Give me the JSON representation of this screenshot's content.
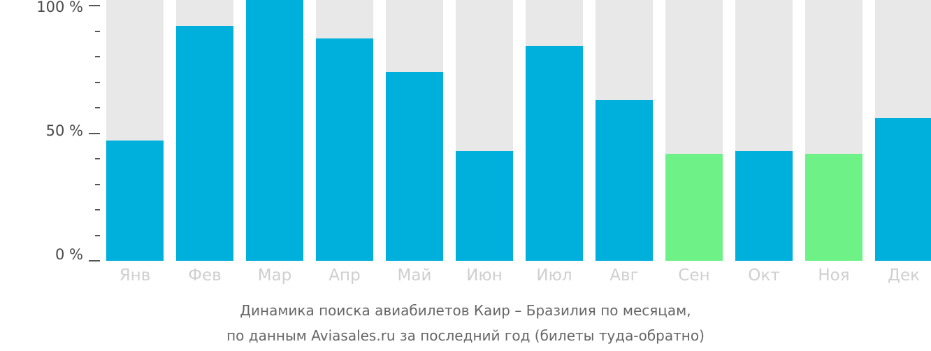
{
  "chart_data": {
    "type": "bar",
    "stacked_percent": true,
    "title": "Динамика поиска авиабилетов Каир – Бразилия по месяцам,",
    "subtitle": "по данным Aviasales.ru за последний год (билеты туда-обратно)",
    "xlabel": "",
    "ylabel": "",
    "ylim": [
      0,
      100
    ],
    "yticks": [
      "0 %",
      "50 %",
      "100 %"
    ],
    "categories": [
      "Янв",
      "Фев",
      "Мар",
      "Апр",
      "Май",
      "Июн",
      "Июл",
      "Авг",
      "Сен",
      "Окт",
      "Ноя",
      "Дек"
    ],
    "values": [
      47,
      92,
      100,
      87,
      74,
      43,
      84,
      63,
      42,
      43,
      42,
      56
    ],
    "highlight": [
      false,
      false,
      false,
      false,
      false,
      false,
      false,
      false,
      true,
      false,
      true,
      false
    ],
    "colors": {
      "bar": "#00b0dc",
      "highlight": "#6ef287",
      "background_bar": "#e8e8e8"
    },
    "grid": false,
    "legend": null
  },
  "labels": {
    "y_100": "100 %",
    "y_50": "50 %",
    "y_0": "0 %",
    "caption_line1": "Динамика поиска авиабилетов Каир – Бразилия по месяцам,",
    "caption_line2": "по данным Aviasales.ru за последний год (билеты туда-обратно)"
  }
}
